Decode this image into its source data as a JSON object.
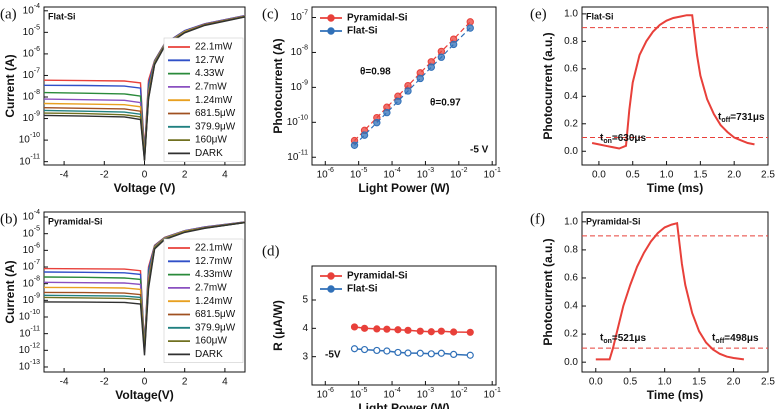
{
  "chart_data": [
    {
      "type": "line",
      "panel_label": "(a)",
      "title": "Flat-Si",
      "x_label": "Voltage (V)",
      "y_label": "Current (A)",
      "x": [
        -5,
        -3,
        -1,
        -0.2,
        0,
        0.2,
        0.5,
        1,
        2,
        3,
        5
      ],
      "xlim": [
        -5,
        5
      ],
      "xticks": [
        -4,
        -2,
        0,
        2,
        4
      ],
      "ylim": [
        7e-12,
        0.00015
      ],
      "y_log": true,
      "yticks": [
        {
          "value": 1e-11,
          "label": "10^-11"
        },
        {
          "value": 1e-10,
          "label": "10^-10"
        },
        {
          "value": 1e-09,
          "label": "10^-9"
        },
        {
          "value": 1e-08,
          "label": "10^-8"
        },
        {
          "value": 1e-07,
          "label": "10^-7"
        },
        {
          "value": 1e-06,
          "label": "10^-6"
        },
        {
          "value": 1e-05,
          "label": "10^-5"
        },
        {
          "value": 0.0001,
          "label": "10^-4"
        }
      ],
      "legend": "right",
      "series": [
        {
          "name": "22.1mW",
          "color": "#e8403a",
          "values": [
            6e-08,
            5.8e-08,
            5.5e-08,
            4.5e-08,
            3e-11,
            6e-08,
            5e-07,
            3e-06,
            1.2e-05,
            2.5e-05,
            6e-05
          ]
        },
        {
          "name": "12.7W",
          "color": "#3050c8",
          "values": [
            3.5e-08,
            3.4e-08,
            3.2e-08,
            2.6e-08,
            2.5e-11,
            4e-08,
            4.8e-07,
            2.9e-06,
            1.2e-05,
            2.5e-05,
            6e-05
          ]
        },
        {
          "name": "4.33W",
          "color": "#2a8a3a",
          "values": [
            1.6e-08,
            1.5e-08,
            1.4e-08,
            1.1e-08,
            2.2e-11,
            2.5e-08,
            4.5e-07,
            2.8e-06,
            1.1e-05,
            2.4e-05,
            5.8e-05
          ]
        },
        {
          "name": "2.7mW",
          "color": "#8a50c0",
          "values": [
            8e-09,
            7.5e-09,
            7e-09,
            5.5e-09,
            2e-11,
            1.8e-08,
            4.2e-07,
            2.7e-06,
            1.1e-05,
            2.4e-05,
            5.8e-05
          ]
        },
        {
          "name": "1.24mW",
          "color": "#e8a020",
          "values": [
            5e-09,
            4.7e-09,
            4.4e-09,
            3.5e-09,
            1.8e-11,
            1.4e-08,
            4e-07,
            2.6e-06,
            1.1e-05,
            2.3e-05,
            5.6e-05
          ]
        },
        {
          "name": "681.5μW",
          "color": "#a05020",
          "values": [
            3.2e-09,
            3e-09,
            2.8e-09,
            2.2e-09,
            1.6e-11,
            1.2e-08,
            3.8e-07,
            2.5e-06,
            1e-05,
            2.3e-05,
            5.5e-05
          ]
        },
        {
          "name": "379.9μW",
          "color": "#208080",
          "values": [
            2.4e-09,
            2.2e-09,
            2e-09,
            1.6e-09,
            1.4e-11,
            1e-08,
            3.6e-07,
            2.4e-06,
            1e-05,
            2.2e-05,
            5.4e-05
          ]
        },
        {
          "name": "160μW",
          "color": "#707020",
          "values": [
            1.8e-09,
            1.7e-09,
            1.5e-09,
            1.2e-09,
            1.2e-11,
            9e-09,
            3.4e-07,
            2.3e-06,
            1e-05,
            2.2e-05,
            5.3e-05
          ]
        },
        {
          "name": "DARK",
          "color": "#303030",
          "values": [
            1.4e-09,
            1.3e-09,
            1.2e-09,
            9e-10,
            1.1e-11,
            8e-09,
            3.2e-07,
            2.2e-06,
            9.5e-06,
            2.1e-05,
            5.2e-05
          ]
        }
      ]
    },
    {
      "type": "line",
      "panel_label": "(b)",
      "title": "Pyramidal-Si",
      "x_label": "Voltage(V)",
      "y_label": "Current (A)",
      "x": [
        -5,
        -3,
        -1,
        -0.2,
        0,
        0.2,
        0.5,
        1,
        2,
        3,
        5
      ],
      "xlim": [
        -5,
        5
      ],
      "xticks": [
        -4,
        -2,
        0,
        2,
        4
      ],
      "ylim": [
        5e-14,
        0.0002
      ],
      "y_log": true,
      "yticks": [
        {
          "value": 1e-13,
          "label": "10^-13"
        },
        {
          "value": 1e-12,
          "label": "10^-12"
        },
        {
          "value": 1e-11,
          "label": "10^-11"
        },
        {
          "value": 1e-10,
          "label": "10^-10"
        },
        {
          "value": 1e-09,
          "label": "10^-9"
        },
        {
          "value": 1e-08,
          "label": "10^-8"
        },
        {
          "value": 1e-07,
          "label": "10^-7"
        },
        {
          "value": 1e-06,
          "label": "10^-6"
        },
        {
          "value": 1e-05,
          "label": "10^-5"
        },
        {
          "value": 0.0001,
          "label": "10^-4"
        }
      ],
      "legend": "right",
      "series": [
        {
          "name": "22.1mW",
          "color": "#e8403a",
          "values": [
            8e-08,
            7.8e-08,
            7.5e-08,
            6e-08,
            2e-12,
            1e-07,
            2e-06,
            6e-06,
            1.5e-05,
            2.5e-05,
            5e-05
          ]
        },
        {
          "name": "12.7mW",
          "color": "#3050c8",
          "values": [
            5e-08,
            4.8e-08,
            4.5e-08,
            3.6e-08,
            1.8e-12,
            7e-08,
            1.9e-06,
            5.8e-06,
            1.5e-05,
            2.5e-05,
            5e-05
          ]
        },
        {
          "name": "4.33mW",
          "color": "#2a8a3a",
          "values": [
            2.5e-08,
            2.4e-08,
            2.2e-08,
            1.8e-08,
            1.5e-12,
            4e-08,
            1.8e-06,
            5.6e-06,
            1.4e-05,
            2.4e-05,
            4.9e-05
          ]
        },
        {
          "name": "2.7mW",
          "color": "#8a50c0",
          "values": [
            1.2e-08,
            1.15e-08,
            1.1e-08,
            9e-09,
            1.3e-12,
            2.5e-08,
            1.7e-06,
            5.4e-06,
            1.4e-05,
            2.4e-05,
            4.9e-05
          ]
        },
        {
          "name": "1.24mW",
          "color": "#e8a020",
          "values": [
            6e-09,
            5.8e-09,
            5.5e-09,
            4.5e-09,
            1.1e-12,
            1.6e-08,
            1.6e-06,
            5.2e-06,
            1.4e-05,
            2.3e-05,
            4.8e-05
          ]
        },
        {
          "name": "681.5μW",
          "color": "#a05020",
          "values": [
            3e-09,
            2.9e-09,
            2.7e-09,
            2.2e-09,
            1e-12,
            1.2e-08,
            1.5e-06,
            5e-06,
            1.3e-05,
            2.3e-05,
            4.8e-05
          ]
        },
        {
          "name": "379.9μW",
          "color": "#208080",
          "values": [
            2e-09,
            1.9e-09,
            1.8e-09,
            1.5e-09,
            9e-13,
            9e-09,
            1.4e-06,
            4.8e-06,
            1.3e-05,
            2.2e-05,
            4.7e-05
          ]
        },
        {
          "name": "160μW",
          "color": "#707020",
          "values": [
            1.5e-09,
            1.4e-09,
            1.3e-09,
            1.1e-09,
            8e-13,
            7e-09,
            1.3e-06,
            4.6e-06,
            1.3e-05,
            2.2e-05,
            4.7e-05
          ]
        },
        {
          "name": "DARK",
          "color": "#303030",
          "values": [
            8e-10,
            7.8e-10,
            7.5e-10,
            6e-10,
            5e-13,
            5e-09,
            1.2e-06,
            4.4e-06,
            1.2e-05,
            2.1e-05,
            4.6e-05
          ]
        }
      ]
    },
    {
      "type": "scatter",
      "panel_label": "(c)",
      "x_label": "Light Power (W)",
      "y_label": "Photocurrent (A)",
      "x": [
        7.5e-06,
        1.5e-05,
        3.5e-05,
        7e-05,
        0.00015,
        0.0003,
        0.0007,
        0.0015,
        0.003,
        0.007,
        0.022
      ],
      "xlim": [
        4e-07,
        0.13
      ],
      "x_log": true,
      "xticks": [
        {
          "value": 1e-06,
          "label": "10^-6"
        },
        {
          "value": 1e-05,
          "label": "10^-5"
        },
        {
          "value": 0.0001,
          "label": "10^-4"
        },
        {
          "value": 0.001,
          "label": "10^-3"
        },
        {
          "value": 0.01,
          "label": "10^-2"
        },
        {
          "value": 0.1,
          "label": "10^-1"
        }
      ],
      "ylim": [
        6e-12,
        2e-07
      ],
      "y_log": true,
      "yticks": [
        {
          "value": 1e-11,
          "label": "10^-11"
        },
        {
          "value": 1e-10,
          "label": "10^-10"
        },
        {
          "value": 1e-09,
          "label": "10^-9"
        },
        {
          "value": 1e-08,
          "label": "10^-8"
        },
        {
          "value": 1e-07,
          "label": "10^-7"
        }
      ],
      "legend": "upper left",
      "fit": "dashed",
      "annotations": [
        {
          "text": "θ=0.98",
          "color": "#e8403a"
        },
        {
          "text": "θ=0.97",
          "color": "#3070b8"
        },
        {
          "text": "-5 V",
          "color": "#222222"
        }
      ],
      "series": [
        {
          "name": "Pyramidal-Si",
          "color": "#e8403a",
          "values": [
            3e-11,
            5.9e-11,
            1.36e-10,
            2.7e-10,
            5.6e-10,
            1.12e-09,
            2.6e-09,
            5.4e-09,
            1.07e-08,
            2.4e-08,
            7.5e-08
          ]
        },
        {
          "name": "Flat-Si",
          "color": "#3070b8",
          "values": [
            2.2e-11,
            4.3e-11,
            9.8e-11,
            1.9e-10,
            4e-10,
            7.9e-10,
            1.8e-09,
            3.8e-09,
            7.3e-09,
            1.7e-08,
            5e-08
          ]
        }
      ]
    },
    {
      "type": "line",
      "panel_label": "(d)",
      "x_label": "Light Power (W)",
      "y_label": "R (μA/W)",
      "x": [
        7.5e-06,
        1.5e-05,
        3.5e-05,
        7e-05,
        0.00015,
        0.0003,
        0.0007,
        0.0015,
        0.003,
        0.007,
        0.022
      ],
      "xlim": [
        4e-07,
        0.13
      ],
      "x_log": true,
      "xticks": [
        {
          "value": 1e-06,
          "label": "10^-6"
        },
        {
          "value": 1e-05,
          "label": "10^-5"
        },
        {
          "value": 0.0001,
          "label": "10^-4"
        },
        {
          "value": 0.001,
          "label": "10^-3"
        },
        {
          "value": 0.01,
          "label": "10^-2"
        },
        {
          "value": 0.1,
          "label": "10^-1"
        }
      ],
      "ylim": [
        2,
        6.2
      ],
      "yticks": [
        3,
        4,
        5
      ],
      "legend": "upper left",
      "markers": true,
      "annotations": [
        {
          "text": "-5V",
          "color": "#222222"
        }
      ],
      "series": [
        {
          "name": "Pyramidal-Si",
          "color": "#e8403a",
          "values": [
            4.05,
            4.0,
            3.98,
            3.97,
            3.95,
            3.93,
            3.9,
            3.88,
            3.9,
            3.87,
            3.86
          ]
        },
        {
          "name": "Flat-Si",
          "color": "#3070b8",
          "values": [
            3.28,
            3.25,
            3.22,
            3.2,
            3.15,
            3.13,
            3.12,
            3.1,
            3.12,
            3.08,
            3.05
          ]
        }
      ]
    },
    {
      "type": "line",
      "panel_label": "(e)",
      "title": "Flat-Si",
      "x_label": "Time (ms)",
      "y_label": "Photocurrent (a.u.)",
      "x": [
        -0.1,
        0,
        0.1,
        0.2,
        0.3,
        0.4,
        0.45,
        0.5,
        0.6,
        0.7,
        0.8,
        0.9,
        1.0,
        1.1,
        1.2,
        1.3,
        1.38,
        1.45,
        1.5,
        1.6,
        1.7,
        1.8,
        1.9,
        2.0,
        2.1,
        2.2,
        2.3
      ],
      "xlim": [
        -0.25,
        2.5
      ],
      "xticks": [
        {
          "value": 0,
          "label": "0.0"
        },
        0.5,
        {
          "value": 1,
          "label": "1.0"
        },
        1.5,
        {
          "value": 2,
          "label": "2.0"
        },
        2.5
      ],
      "ylim": [
        -0.1,
        1.05
      ],
      "yticks": [
        {
          "value": 0,
          "label": "0.0"
        },
        0.2,
        0.4,
        0.6,
        0.8,
        {
          "value": 1,
          "label": "1.0"
        }
      ],
      "ref_lines": [
        0.9,
        0.1
      ],
      "annotations": [
        {
          "text": "t_on=630μs",
          "color": "#e8403a"
        },
        {
          "text": "t_off=731μs",
          "color": "#e8403a"
        }
      ],
      "series": [
        {
          "color": "#e8403a",
          "values": [
            0.06,
            0.05,
            0.04,
            0.03,
            0.02,
            0.04,
            0.3,
            0.5,
            0.7,
            0.8,
            0.87,
            0.92,
            0.95,
            0.97,
            0.98,
            0.99,
            0.99,
            0.7,
            0.55,
            0.38,
            0.27,
            0.19,
            0.14,
            0.1,
            0.08,
            0.06,
            0.05
          ]
        }
      ]
    },
    {
      "type": "line",
      "panel_label": "(f)",
      "title": "Pyramidal-Si",
      "x_label": "Time (ms)",
      "y_label": "Photocurrent (a.u.)",
      "x": [
        0,
        0.1,
        0.2,
        0.25,
        0.3,
        0.4,
        0.5,
        0.6,
        0.7,
        0.8,
        0.9,
        1.0,
        1.1,
        1.18,
        1.25,
        1.3,
        1.4,
        1.5,
        1.6,
        1.7,
        1.8,
        1.9,
        2.0,
        2.15
      ],
      "xlim": [
        -0.2,
        2.5
      ],
      "xticks": [
        {
          "value": 0,
          "label": "0.0"
        },
        0.5,
        {
          "value": 1,
          "label": "1.0"
        },
        1.5,
        {
          "value": 2,
          "label": "2.0"
        },
        2.5
      ],
      "ylim": [
        -0.07,
        1.07
      ],
      "yticks": [
        {
          "value": 0,
          "label": "0.0"
        },
        0.2,
        0.4,
        0.6,
        0.8,
        {
          "value": 1,
          "label": "1.0"
        }
      ],
      "ref_lines": [
        0.9,
        0.1
      ],
      "annotations": [
        {
          "text": "t_on=521μs",
          "color": "#e8403a"
        },
        {
          "text": "t_off=498μs",
          "color": "#e8403a"
        }
      ],
      "series": [
        {
          "color": "#e8403a",
          "values": [
            0.02,
            0.02,
            0.02,
            0.1,
            0.2,
            0.4,
            0.55,
            0.68,
            0.78,
            0.86,
            0.92,
            0.96,
            0.98,
            0.99,
            0.7,
            0.55,
            0.35,
            0.22,
            0.14,
            0.09,
            0.06,
            0.04,
            0.03,
            0.02
          ]
        }
      ]
    }
  ]
}
